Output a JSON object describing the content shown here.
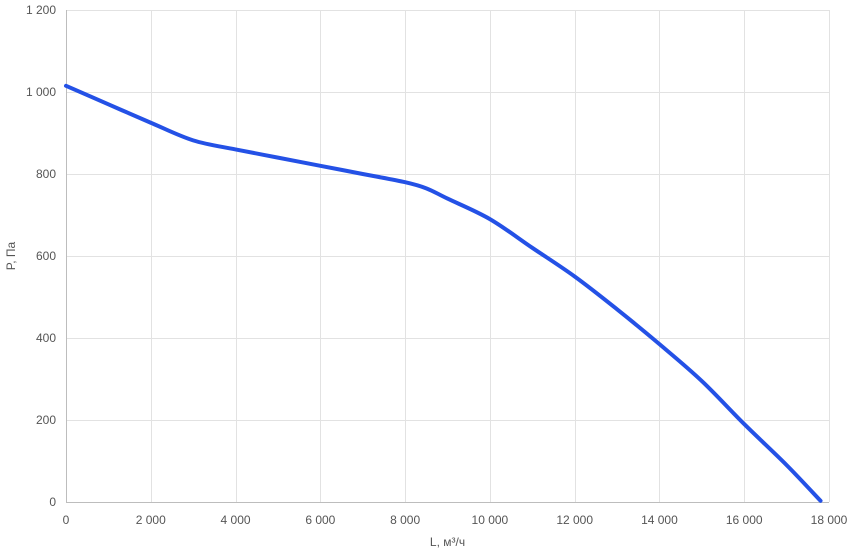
{
  "chart_data": {
    "type": "line",
    "xlabel": "L, м³/ч",
    "ylabel": "P, Па",
    "xlim": [
      0,
      18000
    ],
    "ylim": [
      0,
      1200
    ],
    "x_ticks": [
      0,
      2000,
      4000,
      6000,
      8000,
      10000,
      12000,
      14000,
      16000,
      18000
    ],
    "x_tick_labels": [
      "0",
      "2 000",
      "4 000",
      "6 000",
      "8 000",
      "10 000",
      "12 000",
      "14 000",
      "16 000",
      "18 000"
    ],
    "y_ticks": [
      0,
      200,
      400,
      600,
      800,
      1000,
      1200
    ],
    "y_tick_labels": [
      "0",
      "200",
      "400",
      "600",
      "800",
      "1 000",
      "1 200"
    ],
    "grid": true,
    "legend": "none",
    "series": [
      {
        "color": "#2451e6",
        "x": [
          0,
          1000,
          2000,
          3000,
          4000,
          5000,
          6000,
          7000,
          8000,
          8500,
          9000,
          10000,
          11000,
          12000,
          13000,
          14000,
          15000,
          16000,
          17000,
          17800
        ],
        "y": [
          1015,
          970,
          925,
          882,
          860,
          840,
          820,
          800,
          780,
          765,
          740,
          690,
          620,
          550,
          470,
          385,
          295,
          190,
          90,
          3
        ]
      }
    ]
  }
}
